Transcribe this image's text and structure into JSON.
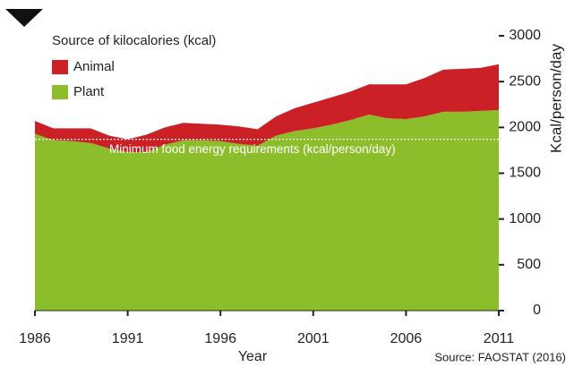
{
  "chart_data": {
    "type": "stacked_area",
    "legend_title": "Source of kilocalories (kcal)",
    "x_label": "Year",
    "y_label": "Kcal/person/day",
    "source": "Source: FAOSTAT (2016)",
    "annotation": {
      "text": "Minimum food energy requirements (kcal/person/day)",
      "value": 1870
    },
    "x": [
      1986,
      1987,
      1988,
      1989,
      1990,
      1991,
      1992,
      1993,
      1994,
      1995,
      1996,
      1997,
      1998,
      1999,
      2000,
      2001,
      2002,
      2003,
      2004,
      2005,
      2006,
      2007,
      2008,
      2009,
      2010,
      2011
    ],
    "series": [
      {
        "name": "Plant",
        "color": "#8cbd2a",
        "values": [
          1930,
          1860,
          1850,
          1830,
          1770,
          1730,
          1730,
          1810,
          1860,
          1860,
          1850,
          1820,
          1800,
          1910,
          1960,
          1990,
          2030,
          2080,
          2140,
          2100,
          2090,
          2120,
          2170,
          2170,
          2180,
          2190
        ]
      },
      {
        "name": "Animal",
        "color": "#cc2027",
        "values": [
          140,
          130,
          140,
          160,
          140,
          140,
          190,
          190,
          190,
          180,
          180,
          190,
          180,
          210,
          250,
          280,
          300,
          310,
          330,
          370,
          380,
          420,
          460,
          470,
          470,
          500
        ]
      }
    ],
    "legend_order": [
      1,
      0
    ],
    "xlim": [
      1986,
      2011
    ],
    "xticks": [
      1986,
      1991,
      1996,
      2001,
      2006,
      2011
    ],
    "ylim": [
      0,
      3000
    ],
    "yticks": [
      0,
      500,
      1000,
      1500,
      2000,
      2500,
      3000
    ]
  }
}
